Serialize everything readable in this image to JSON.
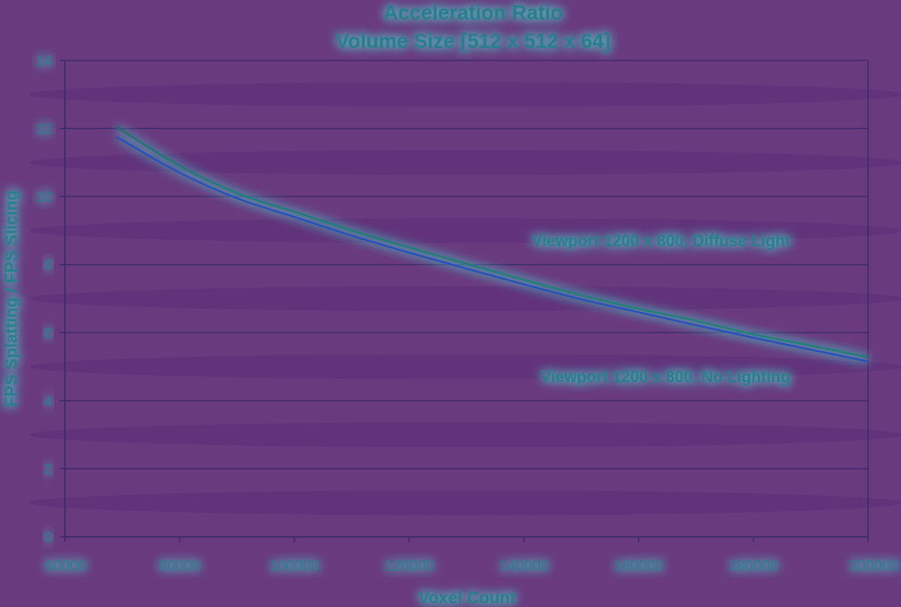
{
  "chart_data": {
    "type": "line",
    "title": "Acceleration Ratio",
    "subtitle": "Volume Size [512 x 512 x 64]",
    "xlabel": "Voxel Count",
    "ylabel": "FPS Splatting / FPS Slicing",
    "xlim": [
      60000,
      200000
    ],
    "ylim": [
      0,
      14
    ],
    "x_ticks": [
      60000,
      80000,
      100000,
      120000,
      140000,
      160000,
      180000,
      200000
    ],
    "x_tick_labels": [
      "60000",
      "80000",
      "100000",
      "120000",
      "140000",
      "160000",
      "180000",
      "200000"
    ],
    "y_ticks": [
      0,
      2,
      4,
      6,
      8,
      10,
      12,
      14
    ],
    "y_tick_labels": [
      "0",
      "2",
      "4",
      "6",
      "8",
      "10",
      "12",
      "14"
    ],
    "grid": "horizontal",
    "series": [
      {
        "name": "Viewport 1200 x 800, Diffuse Light",
        "color": "#1f6b63",
        "x": [
          69000,
          80000,
          90000,
          100000,
          110000,
          120000,
          130000,
          140000,
          150000,
          160000,
          170000,
          180000,
          190000,
          200000
        ],
        "y": [
          12.05,
          10.9,
          10.1,
          9.55,
          9.0,
          8.5,
          8.02,
          7.55,
          7.1,
          6.7,
          6.35,
          5.95,
          5.62,
          5.28
        ]
      },
      {
        "name": "Viewport 1200 x 800, No Lighting",
        "color": "#2a4fb8",
        "x": [
          69000,
          80000,
          90000,
          100000,
          110000,
          120000,
          130000,
          140000,
          150000,
          160000,
          170000,
          180000,
          190000,
          200000
        ],
        "y": [
          11.75,
          10.7,
          9.95,
          9.4,
          8.85,
          8.35,
          7.88,
          7.42,
          6.98,
          6.6,
          6.22,
          5.85,
          5.5,
          5.15
        ]
      }
    ],
    "annotations": [
      {
        "text": "Viewport 1200 x 800, Diffuse Light",
        "x": 188000,
        "y": 8.7
      },
      {
        "text": "Viewport 1200 x 800, No Lighting",
        "x": 188000,
        "y": 4.7
      }
    ]
  },
  "colors": {
    "background": "#6a3a7e",
    "text": "#2b7d8a",
    "gridline": "#3c2a6a",
    "glow": "#4fd6d0"
  }
}
